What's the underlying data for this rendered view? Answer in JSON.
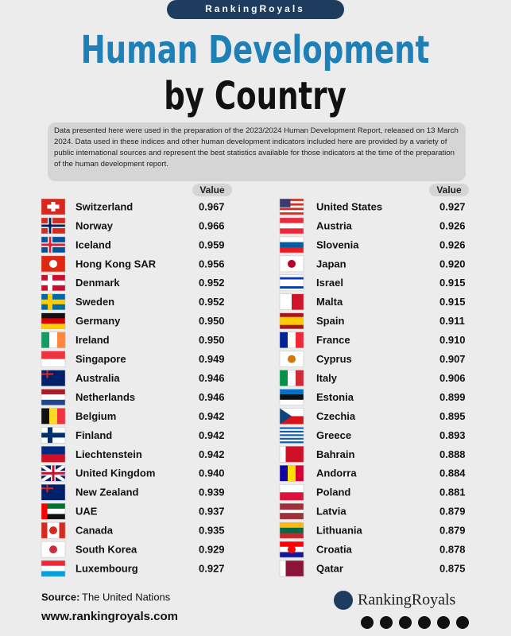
{
  "header": {
    "brand": "RankingRoyals",
    "title_line1": "Human Development",
    "title_line2": "by Country",
    "description": "Data presented here were used in the preparation of the 2023/2024 Human Development Report, released on 13 March 2024. Data used in these indices and other human development indicators included here are provided by a variety of public international sources and represent the best statistics available for those indicators at the time of the preparation of the human development report."
  },
  "table": {
    "columns": [
      {
        "header": "Value",
        "rows": [
          [
            "Switzerland",
            "0.967"
          ],
          [
            "Norway",
            "0.966"
          ],
          [
            "Iceland",
            "0.959"
          ],
          [
            "Hong Kong SAR",
            "0.956"
          ],
          [
            "Denmark",
            "0.952"
          ],
          [
            "Sweden",
            "0.952"
          ],
          [
            "Germany",
            "0.950"
          ],
          [
            "Ireland",
            "0.950"
          ],
          [
            "Singapore",
            "0.949"
          ],
          [
            "Australia",
            "0.946"
          ],
          [
            "Netherlands",
            "0.946"
          ],
          [
            "Belgium",
            "0.942"
          ],
          [
            "Finland",
            "0.942"
          ],
          [
            "Liechtenstein",
            "0.942"
          ],
          [
            "United Kingdom",
            "0.940"
          ],
          [
            "New Zealand",
            "0.939"
          ],
          [
            "UAE",
            "0.937"
          ],
          [
            "Canada",
            "0.935"
          ],
          [
            "South Korea",
            "0.929"
          ],
          [
            "Luxembourg",
            "0.927"
          ]
        ]
      },
      {
        "header": "Value",
        "rows": [
          [
            "United States",
            "0.927"
          ],
          [
            "Austria",
            "0.926"
          ],
          [
            "Slovenia",
            "0.926"
          ],
          [
            "Japan",
            "0.920"
          ],
          [
            "Israel",
            "0.915"
          ],
          [
            "Malta",
            "0.915"
          ],
          [
            "Spain",
            "0.911"
          ],
          [
            "France",
            "0.910"
          ],
          [
            "Cyprus",
            "0.907"
          ],
          [
            "Italy",
            "0.906"
          ],
          [
            "Estonia",
            "0.899"
          ],
          [
            "Czechia",
            "0.895"
          ],
          [
            "Greece",
            "0.893"
          ],
          [
            "Bahrain",
            "0.888"
          ],
          [
            "Andorra",
            "0.884"
          ],
          [
            "Poland",
            "0.881"
          ],
          [
            "Latvia",
            "0.879"
          ],
          [
            "Lithuania",
            "0.879"
          ],
          [
            "Croatia",
            "0.878"
          ],
          [
            "Qatar",
            "0.875"
          ]
        ]
      }
    ]
  },
  "footer": {
    "source_label": "Source:",
    "source": "The United Nations",
    "website": "www.rankingroyals.com",
    "logo": "RankingRoyals"
  }
}
